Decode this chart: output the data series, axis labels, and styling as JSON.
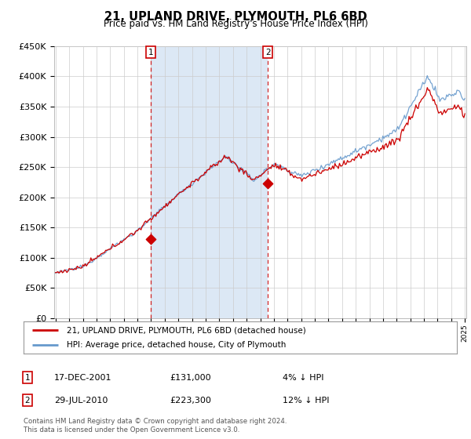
{
  "title": "21, UPLAND DRIVE, PLYMOUTH, PL6 6BD",
  "subtitle": "Price paid vs. HM Land Registry's House Price Index (HPI)",
  "background_color": "#ffffff",
  "plot_bg_color": "#ffffff",
  "shade_color": "#dce8f5",
  "ylim": [
    0,
    450000
  ],
  "yticks": [
    0,
    50000,
    100000,
    150000,
    200000,
    250000,
    300000,
    350000,
    400000,
    450000
  ],
  "ytick_labels": [
    "£0",
    "£50K",
    "£100K",
    "£150K",
    "£200K",
    "£250K",
    "£300K",
    "£350K",
    "£400K",
    "£450K"
  ],
  "sale1_date": 2001.96,
  "sale1_price": 131000,
  "sale1_label": "1",
  "sale2_date": 2010.57,
  "sale2_price": 223300,
  "sale2_label": "2",
  "legend_red": "21, UPLAND DRIVE, PLYMOUTH, PL6 6BD (detached house)",
  "legend_blue": "HPI: Average price, detached house, City of Plymouth",
  "annot1_date": "17-DEC-2001",
  "annot1_price": "£131,000",
  "annot1_hpi": "4% ↓ HPI",
  "annot2_date": "29-JUL-2010",
  "annot2_price": "£223,300",
  "annot2_hpi": "12% ↓ HPI",
  "footer": "Contains HM Land Registry data © Crown copyright and database right 2024.\nThis data is licensed under the Open Government Licence v3.0.",
  "red_color": "#cc0000",
  "blue_color": "#6699cc",
  "dashed_color": "#cc0000",
  "xmin": 1995,
  "xmax": 2025
}
